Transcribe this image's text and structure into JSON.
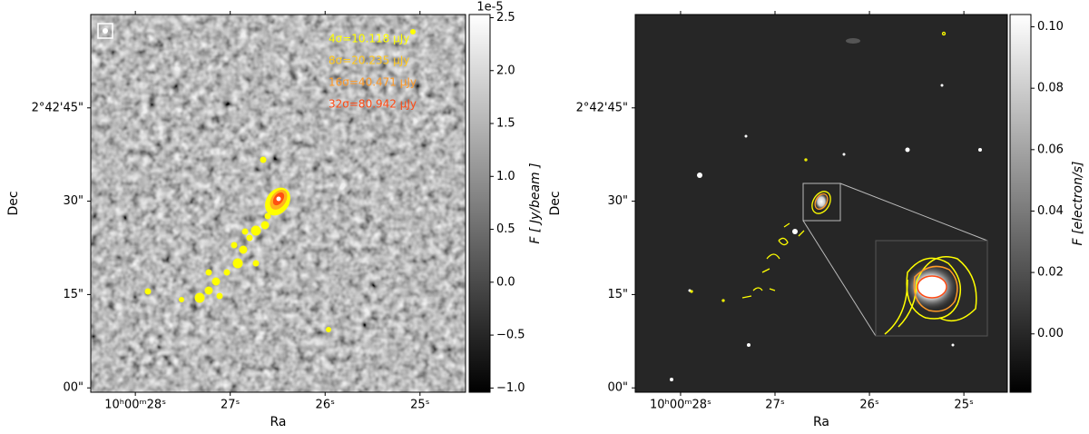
{
  "chart_data": [
    {
      "type": "image",
      "cmap": "gray",
      "x_label": "Ra",
      "y_label": "Dec",
      "xlim": [
        28.47,
        24.52
      ],
      "ylim": [
        -0.7,
        60
      ],
      "xticks": [
        {
          "value": 28,
          "label": "10ʰ00ᵐ28ˢ"
        },
        {
          "value": 27,
          "label": "27ˢ"
        },
        {
          "value": 26,
          "label": "26ˢ"
        },
        {
          "value": 25,
          "label": "25ˢ"
        }
      ],
      "yticks": [
        {
          "value": 0,
          "label": "00\""
        },
        {
          "value": 15,
          "label": "15\""
        },
        {
          "value": 30,
          "label": "30\""
        },
        {
          "value": 45,
          "label": "2°42'45\""
        }
      ],
      "colorbar": {
        "label": "F [ Jy/beam ]",
        "offset_text": "1e-5",
        "lim": [
          -1.04,
          2.53
        ],
        "ticks": [
          {
            "value": -1,
            "label": "−1.0"
          },
          {
            "value": -0.5,
            "label": "−0.5"
          },
          {
            "value": 0,
            "label": "0.0"
          },
          {
            "value": 0.5,
            "label": "0.5"
          },
          {
            "value": 1,
            "label": "1.0"
          },
          {
            "value": 1.5,
            "label": "1.5"
          },
          {
            "value": 2,
            "label": "2.0"
          },
          {
            "value": 2.5,
            "label": "2.5"
          }
        ]
      },
      "contours": [
        {
          "name": "4σ=10.118 μJy",
          "color": "#ffff00"
        },
        {
          "name": "8σ=20.235 μJy",
          "color": "#ffc81e"
        },
        {
          "name": "16σ=40.471 μJy",
          "color": "#ff9a28"
        },
        {
          "name": "32σ=80.942 μJy",
          "color": "#ff4a14"
        }
      ]
    },
    {
      "type": "image",
      "cmap": "gray",
      "x_label": "Ra",
      "y_label": "Dec",
      "xlim": [
        28.48,
        24.54
      ],
      "ylim": [
        -0.7,
        60
      ],
      "xticks": [
        {
          "value": 28,
          "label": "10ʰ00ᵐ28ˢ"
        },
        {
          "value": 27,
          "label": "27ˢ"
        },
        {
          "value": 26,
          "label": "26ˢ"
        },
        {
          "value": 25,
          "label": "25ˢ"
        }
      ],
      "yticks": [
        {
          "value": 0,
          "label": "00\""
        },
        {
          "value": 15,
          "label": "15\""
        },
        {
          "value": 30,
          "label": "30\""
        },
        {
          "value": 45,
          "label": "2°42'45\""
        }
      ],
      "colorbar": {
        "label": "F [electron/s]",
        "lim": [
          -0.019,
          0.104
        ],
        "ticks": [
          {
            "value": 0,
            "label": "0.00"
          },
          {
            "value": 0.02,
            "label": "0.02"
          },
          {
            "value": 0.04,
            "label": "0.04"
          },
          {
            "value": 0.06,
            "label": "0.06"
          },
          {
            "value": 0.08,
            "label": "0.08"
          },
          {
            "value": 0.1,
            "label": "0.10"
          }
        ]
      }
    }
  ]
}
